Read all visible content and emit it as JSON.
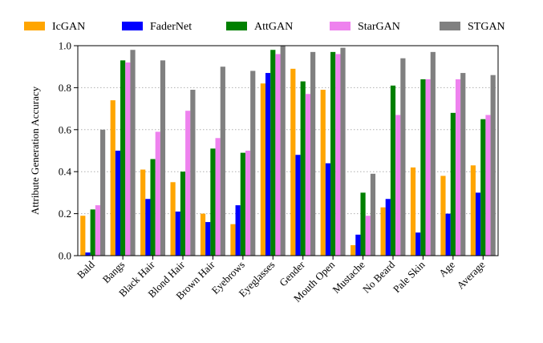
{
  "chart_data": {
    "type": "bar",
    "title": "",
    "xlabel": "",
    "ylabel": "Attribute Generation Accuracy",
    "ylim": [
      0,
      1.0
    ],
    "yticks": [
      "0.0",
      "0.2",
      "0.4",
      "0.6",
      "0.8",
      "1.0"
    ],
    "grid": "horizontal-dotted",
    "legend_position": "top",
    "categories": [
      "Bald",
      "Bangs",
      "Black Hair",
      "Blond Hair",
      "Brown Hair",
      "Eyebrows",
      "Eyeglasses",
      "Gender",
      "Mouth Open",
      "Mustache",
      "No Beard",
      "Pale Skin",
      "Age",
      "Average"
    ],
    "series": [
      {
        "name": "IcGAN",
        "color": "#FFA500",
        "values": [
          0.19,
          0.74,
          0.41,
          0.35,
          0.2,
          0.15,
          0.82,
          0.89,
          0.79,
          0.05,
          0.23,
          0.42,
          0.38,
          0.43
        ]
      },
      {
        "name": "FaderNet",
        "color": "#0000FF",
        "values": [
          0.015,
          0.5,
          0.27,
          0.21,
          0.16,
          0.24,
          0.87,
          0.48,
          0.44,
          0.1,
          0.27,
          0.11,
          0.2,
          0.3
        ]
      },
      {
        "name": "AttGAN",
        "color": "#008000",
        "values": [
          0.22,
          0.93,
          0.46,
          0.4,
          0.51,
          0.49,
          0.98,
          0.83,
          0.97,
          0.3,
          0.81,
          0.84,
          0.68,
          0.65
        ]
      },
      {
        "name": "StarGAN",
        "color": "#EE82EE",
        "values": [
          0.24,
          0.92,
          0.59,
          0.69,
          0.56,
          0.5,
          0.96,
          0.77,
          0.96,
          0.19,
          0.67,
          0.84,
          0.84,
          0.67
        ]
      },
      {
        "name": "STGAN",
        "color": "#808080",
        "values": [
          0.6,
          0.98,
          0.93,
          0.79,
          0.9,
          0.88,
          1.0,
          0.97,
          0.99,
          0.39,
          0.94,
          0.97,
          0.87,
          0.86
        ]
      }
    ]
  }
}
